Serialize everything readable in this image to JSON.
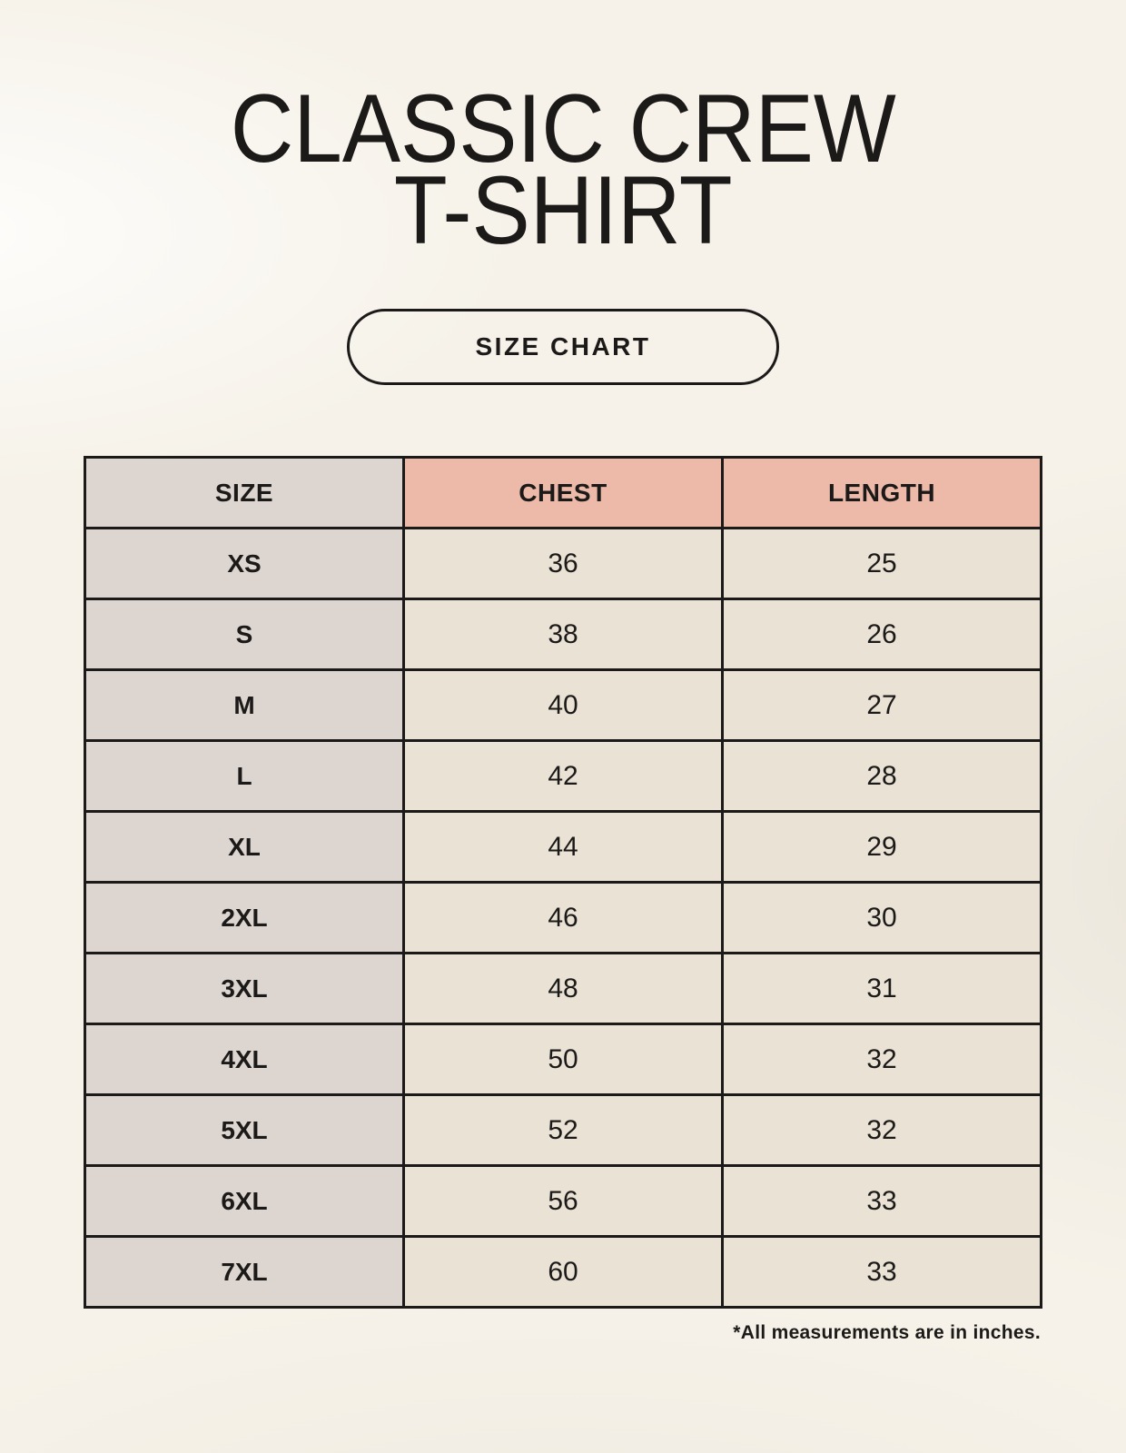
{
  "page": {
    "title_line1": "CLASSIC CREW",
    "title_line2": "T-SHIRT",
    "badge_label": "SIZE CHART",
    "footnote": "*All measurements are in inches."
  },
  "colors": {
    "background": "#f6f2e9",
    "size_column_bg": "#ddd6d0",
    "header_accent_bg": "#edb9a8",
    "data_cell_bg": "#e9e2d5",
    "border": "#1c1a18",
    "text": "#1c1a18"
  },
  "chart_data": {
    "type": "table",
    "title": "CLASSIC CREW T-SHIRT",
    "subtitle": "SIZE CHART",
    "unit_note": "*All measurements are in inches.",
    "columns": [
      "SIZE",
      "CHEST",
      "LENGTH"
    ],
    "rows": [
      {
        "size": "XS",
        "chest": 36,
        "length": 25
      },
      {
        "size": "S",
        "chest": 38,
        "length": 26
      },
      {
        "size": "M",
        "chest": 40,
        "length": 27
      },
      {
        "size": "L",
        "chest": 42,
        "length": 28
      },
      {
        "size": "XL",
        "chest": 44,
        "length": 29
      },
      {
        "size": "2XL",
        "chest": 46,
        "length": 30
      },
      {
        "size": "3XL",
        "chest": 48,
        "length": 31
      },
      {
        "size": "4XL",
        "chest": 50,
        "length": 32
      },
      {
        "size": "5XL",
        "chest": 52,
        "length": 32
      },
      {
        "size": "6XL",
        "chest": 56,
        "length": 33
      },
      {
        "size": "7XL",
        "chest": 60,
        "length": 33
      }
    ]
  }
}
